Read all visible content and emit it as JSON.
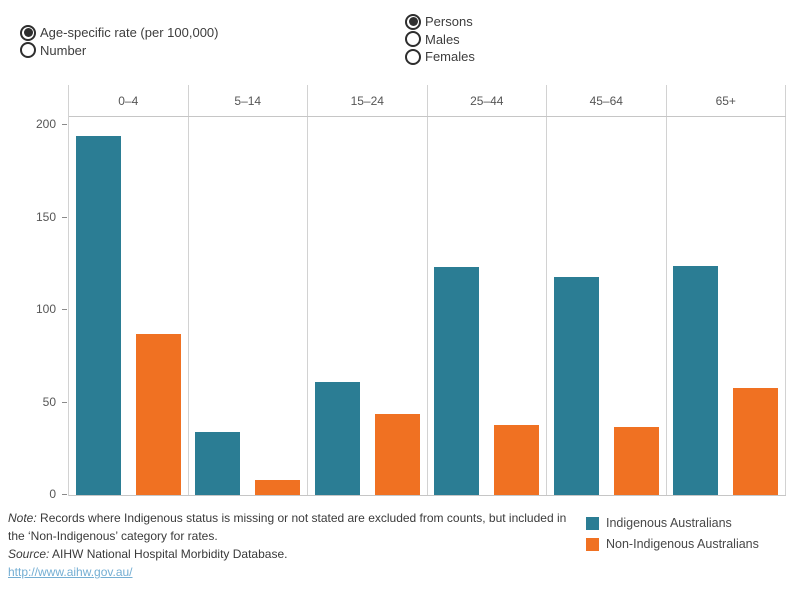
{
  "controls": {
    "measure": {
      "name": "measure",
      "options": [
        {
          "label": "Age-specific rate (per 100,000)",
          "selected": true
        },
        {
          "label": "Number",
          "selected": false
        }
      ]
    },
    "population": {
      "name": "population",
      "options": [
        {
          "label": "Persons",
          "selected": true
        },
        {
          "label": "Males",
          "selected": false
        },
        {
          "label": "Females",
          "selected": false
        }
      ]
    }
  },
  "chart_data": {
    "type": "bar",
    "categories": [
      "0–4",
      "5–14",
      "15–24",
      "25–44",
      "45–64",
      "65+"
    ],
    "series": [
      {
        "name": "Indigenous Australians",
        "color": "#2b7d94",
        "values": [
          194,
          34,
          61,
          123,
          118,
          124
        ]
      },
      {
        "name": "Non-Indigenous Australians",
        "color": "#f07122",
        "values": [
          87,
          8,
          44,
          38,
          37,
          58
        ]
      }
    ],
    "title": "",
    "xlabel": "",
    "ylabel": "Age-specific rate (per 100,000)",
    "ylim": [
      0,
      200
    ],
    "yticks": [
      0,
      50,
      100,
      150,
      200
    ],
    "grid": "column-dividers-only",
    "legend_position": "bottom-right"
  },
  "footer": {
    "note_prefix": "Note:",
    "note_text": " Records where Indigenous status is missing or not stated are excluded from counts, but included in the ‘Non-Indigenous’ category for rates.",
    "source_prefix": "Source:",
    "source_text": " AIHW National Hospital Morbidity Database.",
    "link": "http://www.aihw.gov.au/"
  },
  "colors": {
    "indigenous": "#2b7d94",
    "non_indigenous": "#f07122",
    "link": "#74aed3",
    "axis_line": "#c6c6c6",
    "tick_text": "#565656"
  }
}
